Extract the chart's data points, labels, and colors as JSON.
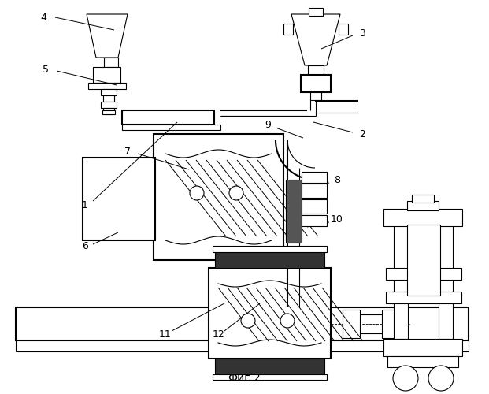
{
  "title": "Фиг.2",
  "bg_color": "#ffffff",
  "line_color": "#000000",
  "figsize": [
    6.21,
    5.0
  ],
  "dpi": 100
}
